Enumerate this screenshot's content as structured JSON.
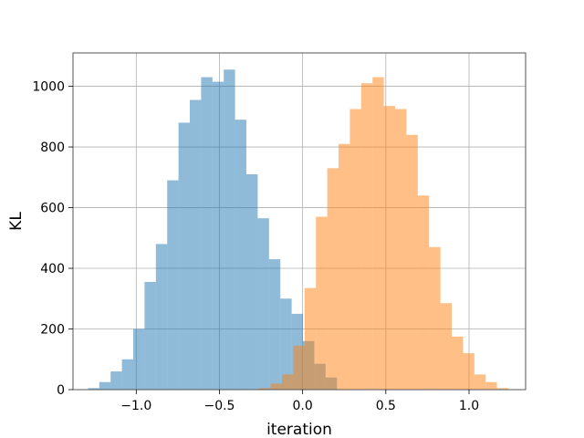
{
  "chart_data": {
    "type": "histogram",
    "title": "",
    "xlabel": "iteration",
    "ylabel": "KL",
    "xlim": [
      -1.38,
      1.34
    ],
    "ylim": [
      0,
      1110
    ],
    "grid": true,
    "x_ticks": [
      -1.0,
      -0.5,
      0.0,
      0.5,
      1.0
    ],
    "x_tick_labels": [
      "−1.0",
      "−0.5",
      "0.0",
      "0.5",
      "1.0"
    ],
    "y_ticks": [
      0,
      200,
      400,
      600,
      800,
      1000
    ],
    "y_tick_labels": [
      "0",
      "200",
      "400",
      "600",
      "800",
      "1000"
    ],
    "series": [
      {
        "color": "#1f77b4",
        "alpha": 0.5,
        "bin_edges": [
          -1.29,
          -1.222,
          -1.154,
          -1.086,
          -1.018,
          -0.95,
          -0.882,
          -0.814,
          -0.746,
          -0.678,
          -0.61,
          -0.542,
          -0.474,
          -0.406,
          -0.338,
          -0.27,
          -0.202,
          -0.134,
          -0.066,
          0.002,
          0.07,
          0.138,
          0.206
        ],
        "counts": [
          5,
          25,
          60,
          100,
          200,
          355,
          480,
          690,
          880,
          955,
          1030,
          1015,
          1055,
          890,
          710,
          565,
          430,
          300,
          250,
          160,
          85,
          40
        ]
      },
      {
        "color": "#ff7f0e",
        "alpha": 0.5,
        "bin_edges": [
          -0.26,
          -0.192,
          -0.124,
          -0.056,
          0.012,
          0.08,
          0.148,
          0.216,
          0.284,
          0.352,
          0.42,
          0.488,
          0.556,
          0.624,
          0.692,
          0.76,
          0.828,
          0.896,
          0.964,
          1.032,
          1.1,
          1.168,
          1.236
        ],
        "counts": [
          5,
          20,
          50,
          145,
          335,
          570,
          730,
          810,
          925,
          1010,
          1030,
          935,
          925,
          840,
          640,
          470,
          285,
          175,
          120,
          50,
          25,
          5
        ]
      }
    ]
  }
}
